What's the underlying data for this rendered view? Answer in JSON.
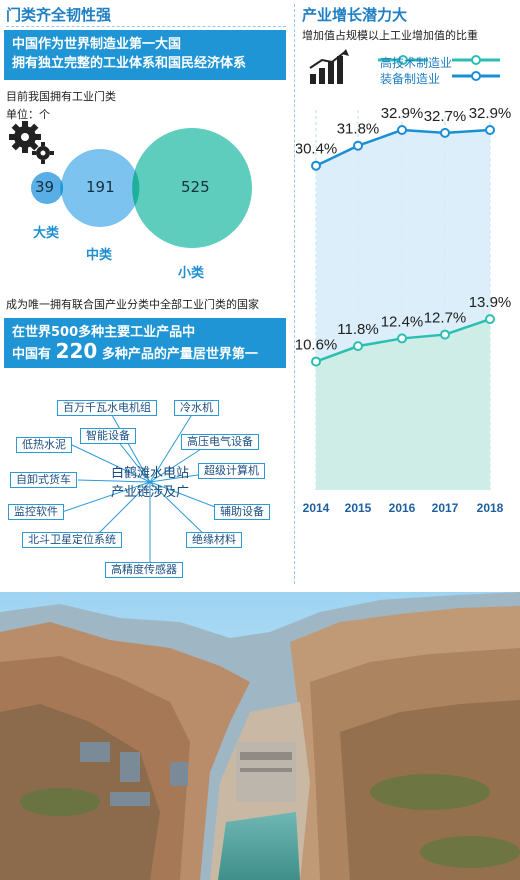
{
  "left": {
    "title": "门类齐全韧性强",
    "banner1": [
      "中国作为世界制造业第一大国",
      "拥有独立完整的工业体系和国民经济体系"
    ],
    "intro": "目前我国拥有工业门类",
    "unit": "单位：个",
    "categories": [
      {
        "label": "大类",
        "value": 39
      },
      {
        "label": "中类",
        "value": 191
      },
      {
        "label": "小类",
        "value": 525
      }
    ],
    "note": "成为唯一拥有联合国产业分类中全部工业门类的国家",
    "banner2": {
      "line1": "在世界500多种主要工业产品中",
      "prefix": "中国有",
      "number": "220",
      "suffix": "多种产品的产量居世界第一"
    }
  },
  "chain": {
    "center": [
      "白鹤滩水电站",
      "产业链涉及广"
    ],
    "items": [
      "百万千瓦水电机组",
      "冷水机",
      "智能设备",
      "低热水泥",
      "高压电气设备",
      "超级计算机",
      "自卸式货车",
      "监控软件",
      "辅助设备",
      "北斗卫星定位系统",
      "绝缘材料",
      "高精度传感器"
    ]
  },
  "right": {
    "title": "产业增长潜力大",
    "subtitle": "增加值占规模以上工业增加值的比重"
  },
  "chart_data": {
    "type": "line",
    "x": [
      "2014",
      "2015",
      "2016",
      "2017",
      "2018"
    ],
    "series": [
      {
        "name": "高技术制造业",
        "values": [
          10.6,
          11.8,
          12.4,
          12.7,
          13.9
        ],
        "labels": [
          "10.6%",
          "11.8%",
          "12.4%",
          "12.7%",
          "13.9%"
        ],
        "color": "#2bbfb1"
      },
      {
        "name": "装备制造业",
        "values": [
          30.4,
          31.8,
          32.9,
          32.7,
          32.9
        ],
        "labels": [
          "30.4%",
          "31.8%",
          "32.9%",
          "32.7%",
          "32.9%"
        ],
        "color": "#1a8fd6"
      }
    ],
    "grid": "vertical dashed lines",
    "legend": "top"
  },
  "colors": {
    "accent": "#1f95d6",
    "teal": "#2bbfb1",
    "venn_small": "#5aaee6",
    "venn_mid": "#7cc3ef",
    "venn_large": "#5ecdbd"
  },
  "icons": {
    "gears": "gears-icon",
    "growth": "growth-chart-icon"
  }
}
